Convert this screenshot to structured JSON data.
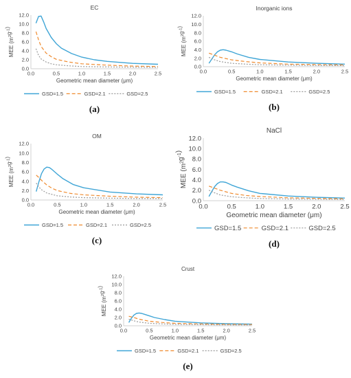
{
  "figure": {
    "x_label": "Geometric mean diameter (μm)",
    "y_label": "MEE (m²g⁻¹)",
    "y_ticks": [
      "0.0",
      "2.0",
      "4.0",
      "6.0",
      "8.0",
      "10.0",
      "12.0"
    ],
    "x_ticks": [
      "0.0",
      "0.5",
      "1.0",
      "1.5",
      "2.0",
      "2.5"
    ],
    "legend_labels": [
      "GSD=1.5",
      "GSD=2.1",
      "GSD=2.5"
    ],
    "colors": {
      "gsd15": "#3fa5d6",
      "gsd21": "#ef8a2e",
      "gsd25": "#9a9a9a",
      "axis": "#d0d0d0",
      "text": "#444444"
    }
  },
  "chart_data": [
    {
      "type": "line",
      "title": "EC",
      "panel_label": "(a)",
      "xlabel": "Geometric mean diameter (μm)",
      "ylabel": "MEE (m²g⁻¹)",
      "xlim": [
        0,
        2.5
      ],
      "ylim": [
        0,
        12
      ],
      "legend": "bottom",
      "grid": false,
      "series": [
        {
          "name": "GSD=1.5",
          "style": "solid",
          "x": [
            0.1,
            0.15,
            0.2,
            0.25,
            0.3,
            0.4,
            0.5,
            0.6,
            0.8,
            1.0,
            1.25,
            1.5,
            2.0,
            2.5
          ],
          "y": [
            10.2,
            11.7,
            11.8,
            10.5,
            9.0,
            7.0,
            5.6,
            4.6,
            3.4,
            2.6,
            2.0,
            1.65,
            1.2,
            1.0
          ]
        },
        {
          "name": "GSD=2.1",
          "style": "dashed",
          "x": [
            0.1,
            0.15,
            0.2,
            0.3,
            0.4,
            0.5,
            0.75,
            1.0,
            1.5,
            2.0,
            2.5
          ],
          "y": [
            8.3,
            6.5,
            5.0,
            3.5,
            2.7,
            2.1,
            1.5,
            1.1,
            0.8,
            0.6,
            0.5
          ]
        },
        {
          "name": "GSD=2.5",
          "style": "dotted",
          "x": [
            0.1,
            0.15,
            0.2,
            0.3,
            0.4,
            0.5,
            0.75,
            1.0,
            1.5,
            2.0,
            2.5
          ],
          "y": [
            4.5,
            3.0,
            2.2,
            1.5,
            1.1,
            0.9,
            0.65,
            0.5,
            0.4,
            0.35,
            0.3
          ]
        }
      ]
    },
    {
      "type": "line",
      "title": "Inorganic ions",
      "panel_label": "(b)",
      "xlabel": "Geometric mean diameter (μm)",
      "ylabel": "MEE (m²g⁻¹)",
      "xlim": [
        0,
        2.5
      ],
      "ylim": [
        0,
        12
      ],
      "legend": "bottom",
      "grid": false,
      "series": [
        {
          "name": "GSD=1.5",
          "style": "solid",
          "x": [
            0.1,
            0.15,
            0.2,
            0.25,
            0.3,
            0.35,
            0.4,
            0.5,
            0.6,
            0.8,
            1.0,
            1.5,
            2.0,
            2.5
          ],
          "y": [
            0.8,
            1.8,
            2.8,
            3.5,
            3.9,
            4.0,
            3.9,
            3.5,
            3.0,
            2.2,
            1.7,
            1.1,
            0.8,
            0.6
          ]
        },
        {
          "name": "GSD=2.1",
          "style": "dashed",
          "x": [
            0.1,
            0.2,
            0.3,
            0.5,
            0.75,
            1.0,
            1.5,
            2.0,
            2.5
          ],
          "y": [
            3.2,
            2.7,
            2.2,
            1.6,
            1.2,
            0.9,
            0.6,
            0.5,
            0.4
          ]
        },
        {
          "name": "GSD=2.5",
          "style": "dotted",
          "x": [
            0.1,
            0.2,
            0.3,
            0.5,
            0.75,
            1.0,
            1.5,
            2.0,
            2.5
          ],
          "y": [
            2.2,
            1.6,
            1.2,
            0.8,
            0.6,
            0.45,
            0.35,
            0.3,
            0.25
          ]
        }
      ]
    },
    {
      "type": "line",
      "title": "OM",
      "panel_label": "(c)",
      "xlabel": "Geometric mean diameter (μm)",
      "ylabel": "MEE (m²g⁻¹)",
      "xlim": [
        0,
        2.5
      ],
      "ylim": [
        0,
        12
      ],
      "legend": "bottom",
      "grid": false,
      "series": [
        {
          "name": "GSD=1.5",
          "style": "solid",
          "x": [
            0.1,
            0.15,
            0.2,
            0.25,
            0.3,
            0.35,
            0.4,
            0.5,
            0.6,
            0.8,
            1.0,
            1.5,
            2.0,
            2.5
          ],
          "y": [
            1.8,
            3.8,
            5.6,
            6.6,
            7.0,
            6.9,
            6.5,
            5.5,
            4.6,
            3.3,
            2.6,
            1.7,
            1.3,
            1.1
          ]
        },
        {
          "name": "GSD=2.1",
          "style": "dashed",
          "x": [
            0.1,
            0.15,
            0.2,
            0.3,
            0.4,
            0.5,
            0.75,
            1.0,
            1.5,
            2.0,
            2.5
          ],
          "y": [
            5.3,
            4.8,
            4.2,
            3.2,
            2.5,
            2.0,
            1.4,
            1.1,
            0.8,
            0.6,
            0.5
          ]
        },
        {
          "name": "GSD=2.5",
          "style": "dotted",
          "x": [
            0.1,
            0.15,
            0.2,
            0.3,
            0.5,
            0.75,
            1.0,
            1.5,
            2.0,
            2.5
          ],
          "y": [
            3.6,
            2.8,
            2.2,
            1.5,
            0.9,
            0.65,
            0.5,
            0.4,
            0.3,
            0.3
          ]
        }
      ]
    },
    {
      "type": "line",
      "title": "NaCl",
      "panel_label": "(d)",
      "xlabel": "Geometric mean diameter (μm)",
      "ylabel": "MEE (m²g⁻¹)",
      "xlim": [
        0,
        2.5
      ],
      "ylim": [
        0,
        12
      ],
      "legend": "bottom",
      "grid": false,
      "series": [
        {
          "name": "GSD=1.5",
          "style": "solid",
          "x": [
            0.1,
            0.15,
            0.2,
            0.25,
            0.3,
            0.35,
            0.4,
            0.5,
            0.6,
            0.8,
            1.0,
            1.5,
            2.0,
            2.5
          ],
          "y": [
            0.8,
            1.8,
            2.7,
            3.3,
            3.6,
            3.6,
            3.5,
            3.0,
            2.6,
            1.9,
            1.4,
            0.9,
            0.65,
            0.5
          ]
        },
        {
          "name": "GSD=2.1",
          "style": "dashed",
          "x": [
            0.1,
            0.2,
            0.3,
            0.5,
            0.75,
            1.0,
            1.5,
            2.0,
            2.5
          ],
          "y": [
            2.8,
            2.4,
            2.0,
            1.4,
            1.0,
            0.8,
            0.55,
            0.45,
            0.35
          ]
        },
        {
          "name": "GSD=2.5",
          "style": "dotted",
          "x": [
            0.1,
            0.2,
            0.3,
            0.5,
            0.75,
            1.0,
            1.5,
            2.0,
            2.5
          ],
          "y": [
            2.0,
            1.5,
            1.1,
            0.75,
            0.55,
            0.42,
            0.32,
            0.27,
            0.22
          ]
        }
      ]
    },
    {
      "type": "line",
      "title": "Crust",
      "panel_label": "(e)",
      "xlabel": "Geometric mean diameter (μm)",
      "ylabel": "MEE (m²g⁻¹)",
      "xlim": [
        0,
        2.5
      ],
      "ylim": [
        0,
        12
      ],
      "legend": "bottom",
      "grid": false,
      "series": [
        {
          "name": "GSD=1.5",
          "style": "solid",
          "x": [
            0.1,
            0.15,
            0.2,
            0.25,
            0.3,
            0.35,
            0.4,
            0.5,
            0.6,
            0.8,
            1.0,
            1.5,
            2.0,
            2.5
          ],
          "y": [
            0.8,
            1.8,
            2.6,
            3.0,
            3.1,
            3.0,
            2.8,
            2.4,
            2.0,
            1.5,
            1.1,
            0.7,
            0.5,
            0.4
          ]
        },
        {
          "name": "GSD=2.1",
          "style": "dashed",
          "x": [
            0.1,
            0.2,
            0.3,
            0.5,
            0.75,
            1.0,
            1.5,
            2.0,
            2.5
          ],
          "y": [
            2.3,
            2.0,
            1.6,
            1.1,
            0.8,
            0.6,
            0.45,
            0.35,
            0.3
          ]
        },
        {
          "name": "GSD=2.5",
          "style": "dotted",
          "x": [
            0.1,
            0.2,
            0.3,
            0.5,
            0.75,
            1.0,
            1.5,
            2.0,
            2.5
          ],
          "y": [
            1.6,
            1.2,
            0.9,
            0.6,
            0.45,
            0.35,
            0.27,
            0.22,
            0.2
          ]
        }
      ]
    }
  ]
}
